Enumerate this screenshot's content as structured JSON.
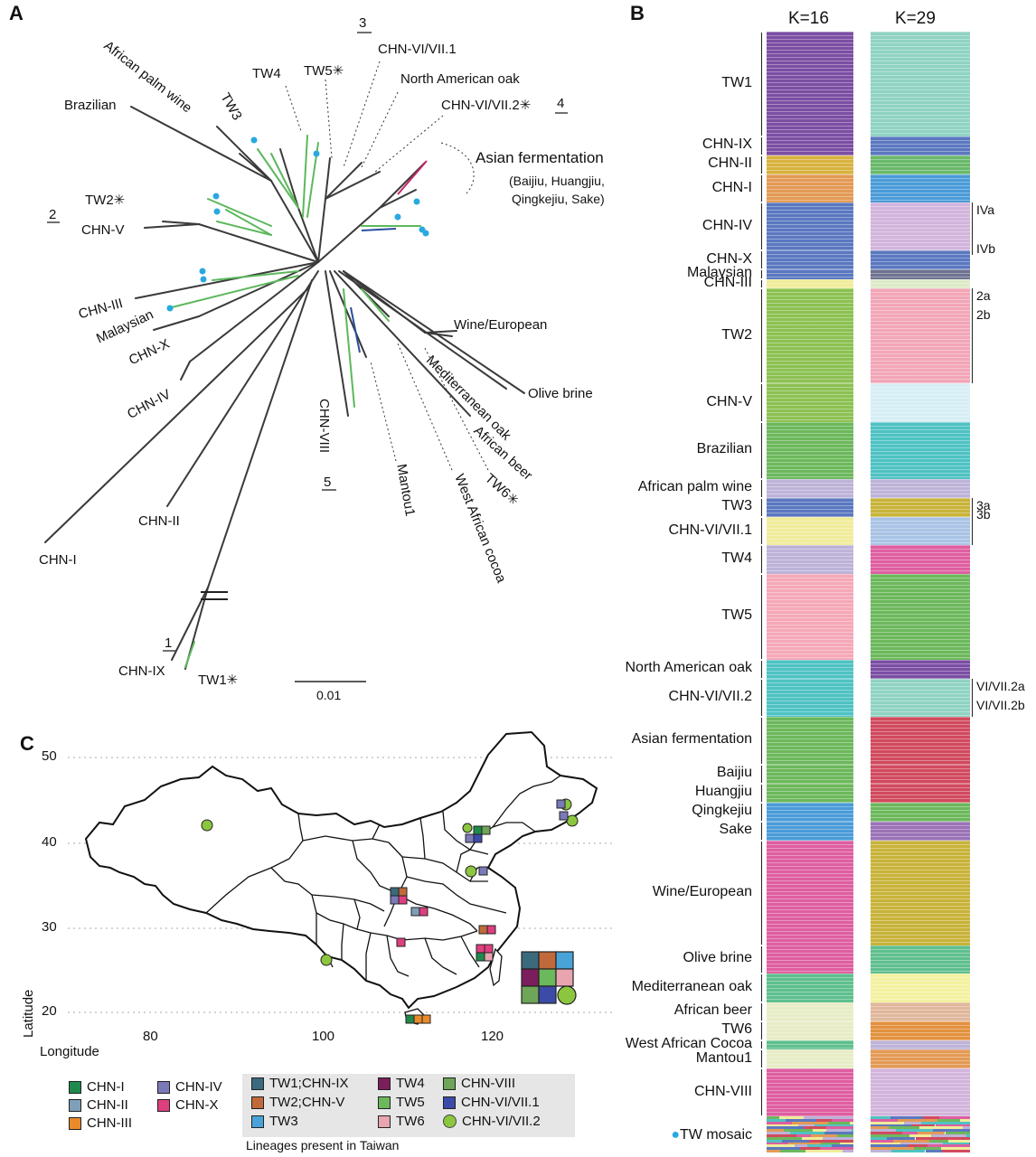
{
  "panels": {
    "a": "A",
    "b": "B",
    "c": "C"
  },
  "tree": {
    "labels": {
      "brazilian": "Brazilian",
      "african_palm_wine": "African palm wine",
      "tw3": "TW3",
      "tw4": "TW4",
      "tw5": "TW5",
      "chn_vi_vii_1": "CHN-VI/VII.1",
      "north_american_oak": "North American oak",
      "chn_vi_vii_2": "CHN-VI/VII.2",
      "asian_fermentation": "Asian fermentation",
      "asian_fermentation_sub": "(Baijiu, Huangjiu,",
      "asian_fermentation_sub2": "Qingkejiu, Sake)",
      "tw2": "TW2",
      "chn_v": "CHN-V",
      "chn_iii": "CHN-III",
      "malaysian": "Malaysian",
      "chn_x": "CHN-X",
      "chn_iv": "CHN-IV",
      "chn_ii": "CHN-II",
      "chn_i": "CHN-I",
      "chn_ix": "CHN-IX",
      "tw1": "TW1",
      "chn_viii": "CHN-VIII",
      "mantou1": "Mantou1",
      "west_african_cocoa": "West African cocoa",
      "tw6": "TW6",
      "african_beer": "African beer",
      "mediterranean_oak": "Mediterranean oak",
      "olive_brine": "Olive brine",
      "wine_european": "Wine/European"
    },
    "asterisk": "✳",
    "clade_numbers": [
      "1",
      "2",
      "3",
      "4",
      "5"
    ],
    "scale_label": "0.01"
  },
  "structure": {
    "k16_title": "K=16",
    "k29_title": "K=29",
    "groups": [
      {
        "label": "TW1",
        "k16": "#7b4ea3",
        "k29": "#8fd3c2",
        "rows": 11
      },
      {
        "label": "CHN-IX",
        "k16": "#7b4ea3",
        "k29": "#5b78c0",
        "rows": 2
      },
      {
        "label": "CHN-II",
        "k16": "#d8b23f",
        "k29": "#69b86a",
        "rows": 2
      },
      {
        "label": "CHN-I",
        "k16": "#e39a55",
        "k29": "#4a9bd8",
        "rows": 3
      },
      {
        "label": "CHN-IV",
        "k16": "#5b78c0",
        "k29": "#d2b4dc",
        "rows": 5
      },
      {
        "label": "CHN-X",
        "k16": "#5b78c0",
        "k29": "#5b78c0",
        "rows": 2
      },
      {
        "label": "Malaysian",
        "k16": "#5b78c0",
        "k29": "#6f7391",
        "rows": 1
      },
      {
        "label": "CHN-III",
        "k16": "#f0ec9a",
        "k29": "#dde9c8",
        "rows": 1
      },
      {
        "label": "TW2",
        "k16": "#8cc152",
        "k29": "#f2a6b7",
        "rows": 10
      },
      {
        "label": "CHN-V",
        "k16": "#8cc152",
        "k29": "#d6eef5",
        "rows": 4
      },
      {
        "label": "Brazilian",
        "k16": "#6cb85c",
        "k29": "#4fc2c3",
        "rows": 6
      },
      {
        "label": "African palm wine",
        "k16": "#bdb3d8",
        "k29": "#bdb3d8",
        "rows": 2
      },
      {
        "label": "TW3",
        "k16": "#5b78c0",
        "k29": "#c8b33a",
        "rows": 2
      },
      {
        "label": "CHN-VI/VII.1",
        "k16": "#f0ec9a",
        "k29": "#a9c3e5",
        "rows": 3
      },
      {
        "label": "TW4",
        "k16": "#bdb3d8",
        "k29": "#de5ea0",
        "rows": 3
      },
      {
        "label": "TW5",
        "k16": "#f5a8b8",
        "k29": "#6cb85c",
        "rows": 9
      },
      {
        "label": "North American oak",
        "k16": "#4fc2c3",
        "k29": "#7b4ea3",
        "rows": 2
      },
      {
        "label": "CHN-VI/VII.2",
        "k16": "#4fc2c3",
        "k29": "#8fd3c2",
        "rows": 4
      },
      {
        "label": "Asian fermentation",
        "k16": "#6cb85c",
        "k29": "#d14a5e",
        "rows": 5
      },
      {
        "label": "Baijiu",
        "k16": "#6cb85c",
        "k29": "#d14a5e",
        "rows": 2
      },
      {
        "label": "Huangjiu",
        "k16": "#6cb85c",
        "k29": "#d14a5e",
        "rows": 2
      },
      {
        "label": "Qingkejiu",
        "k16": "#4a9bd8",
        "k29": "#6cb85c",
        "rows": 2
      },
      {
        "label": "Sake",
        "k16": "#4a9bd8",
        "k29": "#9b72b7",
        "rows": 2
      },
      {
        "label": "Wine/European",
        "k16": "#de5ea0",
        "k29": "#c8b33a",
        "rows": 11
      },
      {
        "label": "Olive brine",
        "k16": "#de5ea0",
        "k29": "#5fbf8e",
        "rows": 3
      },
      {
        "label": "Mediterranean oak",
        "k16": "#5fbf8e",
        "k29": "#f3f1a0",
        "rows": 3
      },
      {
        "label": "African beer",
        "k16": "#e7ecc5",
        "k29": "#e0b79b",
        "rows": 2
      },
      {
        "label": "TW6",
        "k16": "#e7ecc5",
        "k29": "#e3913f",
        "rows": 2
      },
      {
        "label": "West African Cocoa",
        "k16": "#5fbf8e",
        "k29": "#bdb3d8",
        "rows": 1
      },
      {
        "label": "Mantou1",
        "k16": "#e7ecc5",
        "k29": "#e39a55",
        "rows": 2
      },
      {
        "label": "CHN-VIII",
        "k16": "#de5ea0",
        "k29": "#d2b4dc",
        "rows": 5
      }
    ],
    "side_labels": {
      "iva": "IVa",
      "ivb": "IVb",
      "a2": "2a",
      "b2": "2b",
      "a3": "3a",
      "b3": "3b",
      "vi2a": "VI/VII.2a",
      "vi2b": "VI/VII.2b"
    },
    "mosaic_label": "TW mosaic",
    "mosaic_colors": [
      "#6cb85c",
      "#4fc2c3",
      "#de5ea0",
      "#f0ec9a",
      "#5b78c0",
      "#e39a55",
      "#bdb3d8",
      "#d14a5e"
    ]
  },
  "map": {
    "lat_ticks": [
      "50",
      "40",
      "30",
      "20"
    ],
    "lon_ticks": [
      "80",
      "100",
      "120"
    ],
    "ylabel": "Latitude",
    "xlabel": "Longitude"
  },
  "legend": {
    "china": [
      {
        "label": "CHN-I",
        "color": "#1f8a4c"
      },
      {
        "label": "CHN-II",
        "color": "#7e9fb7"
      },
      {
        "label": "CHN-III",
        "color": "#e98a2b"
      },
      {
        "label": "CHN-IV",
        "color": "#7a7ab8"
      },
      {
        "label": "CHN-X",
        "color": "#de3f7e"
      }
    ],
    "taiwan": [
      {
        "label": "TW1;CHN-IX",
        "color": "#3b6a7d"
      },
      {
        "label": "TW2;CHN-V",
        "color": "#c06a3b"
      },
      {
        "label": "TW3",
        "color": "#4aa3d8"
      },
      {
        "label": "TW4",
        "color": "#7b1e5c"
      },
      {
        "label": "TW5",
        "color": "#6cb85c"
      },
      {
        "label": "TW6",
        "color": "#e8a5b0"
      },
      {
        "label": "CHN-VIII",
        "color": "#6ea558"
      },
      {
        "label": "CHN-VI/VII.1",
        "color": "#3c4aa8"
      },
      {
        "label": "CHN-VI/VII.2",
        "color": "#8cc63f"
      }
    ],
    "taiwan_caption": "Lineages present in Taiwan"
  }
}
